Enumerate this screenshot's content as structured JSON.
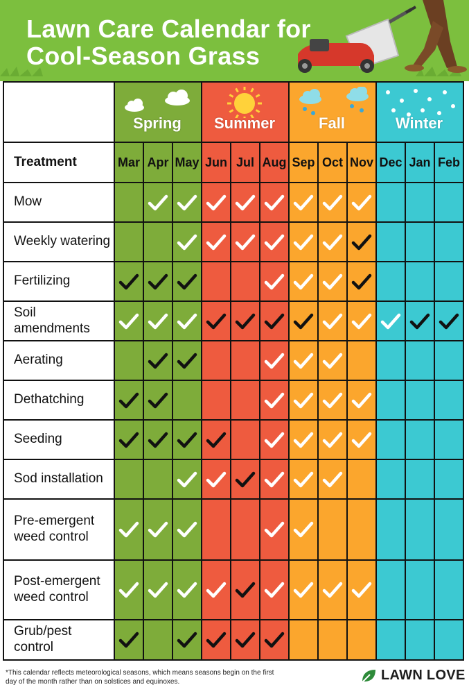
{
  "title_line1": "Lawn Care Calendar for",
  "title_line2": "Cool-Season Grass",
  "treatment_header": "Treatment",
  "seasons": [
    {
      "name": "Spring",
      "color": "#7eac3a",
      "icon": "cloud-icon"
    },
    {
      "name": "Summer",
      "color": "#ee5b3f",
      "icon": "sun-icon"
    },
    {
      "name": "Fall",
      "color": "#fba62d",
      "icon": "rain-cloud-icon"
    },
    {
      "name": "Winter",
      "color": "#3cc9d2",
      "icon": "snowflake-icon"
    }
  ],
  "months": [
    "Mar",
    "Apr",
    "May",
    "Jun",
    "Jul",
    "Aug",
    "Sep",
    "Oct",
    "Nov",
    "Dec",
    "Jan",
    "Feb"
  ],
  "check_legend": {
    "W": "white check",
    "B": "black check",
    "-": "empty"
  },
  "treatments": [
    {
      "name": "Mow",
      "marks": [
        "-",
        "W",
        "W",
        "W",
        "W",
        "W",
        "W",
        "W",
        "W",
        "-",
        "-",
        "-"
      ]
    },
    {
      "name": "Weekly watering",
      "marks": [
        "-",
        "-",
        "W",
        "W",
        "W",
        "W",
        "W",
        "W",
        "B",
        "-",
        "-",
        "-"
      ]
    },
    {
      "name": "Fertilizing",
      "marks": [
        "B",
        "B",
        "B",
        "-",
        "-",
        "W",
        "W",
        "W",
        "B",
        "-",
        "-",
        "-"
      ]
    },
    {
      "name": "Soil amendments",
      "marks": [
        "W",
        "W",
        "W",
        "B",
        "B",
        "B",
        "B",
        "W",
        "W",
        "W",
        "B",
        "B"
      ]
    },
    {
      "name": "Aerating",
      "marks": [
        "-",
        "B",
        "B",
        "-",
        "-",
        "W",
        "W",
        "W",
        "-",
        "-",
        "-",
        "-"
      ]
    },
    {
      "name": "Dethatching",
      "marks": [
        "B",
        "B",
        "-",
        "-",
        "-",
        "W",
        "W",
        "W",
        "W",
        "-",
        "-",
        "-"
      ]
    },
    {
      "name": "Seeding",
      "marks": [
        "B",
        "B",
        "B",
        "B",
        "-",
        "W",
        "W",
        "W",
        "W",
        "-",
        "-",
        "-"
      ]
    },
    {
      "name": "Sod installation",
      "marks": [
        "-",
        "-",
        "W",
        "W",
        "B",
        "W",
        "W",
        "W",
        "-",
        "-",
        "-",
        "-"
      ]
    },
    {
      "name": "Pre-emergent\nweed control",
      "marks": [
        "W",
        "W",
        "W",
        "-",
        "-",
        "W",
        "W",
        "-",
        "-",
        "-",
        "-",
        "-"
      ]
    },
    {
      "name": "Post-emergent\nweed control",
      "marks": [
        "W",
        "W",
        "W",
        "W",
        "B",
        "W",
        "W",
        "W",
        "W",
        "-",
        "-",
        "-"
      ]
    },
    {
      "name": "Grub/pest control",
      "marks": [
        "B",
        "-",
        "B",
        "B",
        "B",
        "B",
        "-",
        "-",
        "-",
        "-",
        "-",
        "-"
      ]
    }
  ],
  "footnote": "*This calendar reflects meteorological seasons, which means seasons begin on the first day of the month rather than on solstices and equinoxes.",
  "brand": "LAWN LOVE",
  "colors": {
    "header_green": "#7cbf3e",
    "grid_line": "#111111",
    "check_black": "#111111",
    "check_white": "#ffffff"
  }
}
